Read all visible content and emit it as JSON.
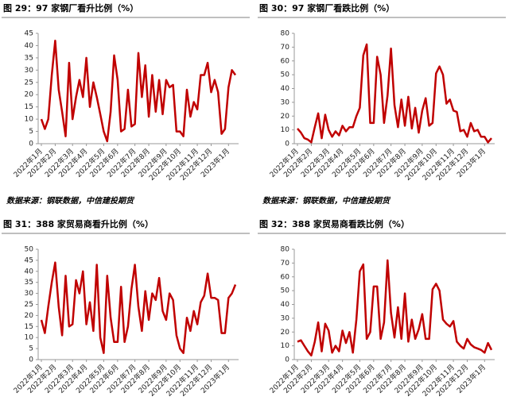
{
  "chart_data": [
    {
      "type": "line",
      "title": "图 29：97 家钢厂看升比例（%）",
      "source": "数据来源：钢联数据，中信建投期货",
      "color": "#c00000",
      "ylim": [
        0,
        45
      ],
      "yticks": [
        0,
        5,
        10,
        15,
        20,
        25,
        30,
        35,
        40,
        45
      ],
      "categories": [
        "2022年1月",
        null,
        null,
        null,
        "2022年2月",
        null,
        null,
        null,
        null,
        "2022年3月",
        null,
        null,
        null,
        "2022年4月",
        null,
        null,
        null,
        null,
        "2022年5月",
        null,
        null,
        null,
        "2022年6月",
        null,
        null,
        null,
        null,
        "2022年7月",
        null,
        null,
        null,
        "2022年8月",
        null,
        null,
        null,
        null,
        "2022年9月",
        null,
        null,
        null,
        "2022年10月",
        null,
        null,
        null,
        null,
        "2022年11月",
        null,
        null,
        null,
        "2022年12月",
        null,
        null,
        null,
        null,
        "2023年1月",
        null,
        null
      ],
      "values": [
        10,
        6,
        10,
        28,
        42,
        22,
        13,
        3,
        33,
        10,
        19,
        26,
        19,
        35,
        15,
        25,
        19,
        12,
        5,
        1,
        13,
        36,
        26,
        5,
        6,
        22,
        7,
        8,
        37,
        19,
        32,
        11,
        28,
        13,
        26,
        12,
        26,
        23,
        24,
        5,
        5,
        3,
        22,
        11,
        17,
        14,
        28,
        28,
        33,
        21,
        26,
        21,
        4,
        6,
        23,
        30,
        28
      ]
    },
    {
      "type": "line",
      "title": "图 30：97 家钢厂看跌比例（%）",
      "source": "数据来源：钢联数据，中信建投期货",
      "color": "#c00000",
      "ylim": [
        0,
        80
      ],
      "yticks": [
        0,
        10,
        20,
        30,
        40,
        50,
        60,
        70,
        80
      ],
      "categories": [
        "2022年1月",
        null,
        null,
        null,
        "2022年2月",
        null,
        null,
        null,
        null,
        "2022年3月",
        null,
        null,
        null,
        "2022年4月",
        null,
        null,
        null,
        null,
        "2022年5月",
        null,
        null,
        null,
        "2022年6月",
        null,
        null,
        null,
        null,
        "2022年7月",
        null,
        null,
        null,
        "2022年8月",
        null,
        null,
        null,
        null,
        "2022年9月",
        null,
        null,
        null,
        "2022年10月",
        null,
        null,
        null,
        null,
        "2022年11月",
        null,
        null,
        null,
        "2022年12月",
        null,
        null,
        null,
        null,
        "2023年1月",
        null,
        null
      ],
      "values": [
        11,
        8,
        4,
        3,
        1,
        12,
        22,
        4,
        21,
        10,
        5,
        9,
        6,
        13,
        9,
        12,
        12,
        20,
        26,
        64,
        72,
        15,
        15,
        63,
        50,
        15,
        35,
        69,
        28,
        12,
        32,
        13,
        34,
        11,
        26,
        8,
        24,
        33,
        13,
        15,
        51,
        56,
        50,
        29,
        32,
        24,
        23,
        9,
        10,
        5,
        15,
        9,
        10,
        5,
        5,
        1,
        4
      ]
    },
    {
      "type": "line",
      "title": "图 31：388 家贸易商看升比例（%）",
      "source": "数据来源：钢联数据，中信建投期货",
      "color": "#c00000",
      "ylim": [
        0,
        50
      ],
      "yticks": [
        0,
        5,
        10,
        15,
        20,
        25,
        30,
        35,
        40,
        45,
        50
      ],
      "categories": [
        "2022年1月",
        null,
        null,
        null,
        "2022年2月",
        null,
        null,
        null,
        null,
        "2022年3月",
        null,
        null,
        null,
        "2022年4月",
        null,
        null,
        null,
        null,
        "2022年5月",
        null,
        null,
        null,
        "2022年6月",
        null,
        null,
        null,
        null,
        "2022年7月",
        null,
        null,
        null,
        "2022年8月",
        null,
        null,
        null,
        null,
        "2022年9月",
        null,
        null,
        null,
        "2022年10月",
        null,
        null,
        null,
        null,
        "2022年11月",
        null,
        null,
        null,
        "2022年12月",
        null,
        null,
        null,
        null,
        "2023年1月",
        null,
        null
      ],
      "values": [
        18,
        12,
        24,
        35,
        44,
        24,
        11,
        38,
        15,
        16,
        36,
        30,
        40,
        16,
        26,
        13,
        43,
        10,
        3,
        38,
        19,
        8,
        8,
        33,
        8,
        15,
        32,
        43,
        24,
        13,
        31,
        18,
        30,
        27,
        37,
        22,
        18,
        30,
        27,
        11,
        5,
        3,
        19,
        13,
        22,
        16,
        26,
        29,
        39,
        28,
        28,
        27,
        12,
        12,
        28,
        30,
        34
      ]
    },
    {
      "type": "line",
      "title": "图 32：388 家贸易商看跌比例（%）",
      "source": "数据来源：钢联数据，中信建投期货",
      "color": "#c00000",
      "ylim": [
        0,
        80
      ],
      "yticks": [
        0,
        10,
        20,
        30,
        40,
        50,
        60,
        70,
        80
      ],
      "categories": [
        "2022年1月",
        null,
        null,
        null,
        "2022年2月",
        null,
        null,
        null,
        null,
        "2022年3月",
        null,
        null,
        null,
        "2022年4月",
        null,
        null,
        null,
        null,
        "2022年5月",
        null,
        null,
        null,
        "2022年6月",
        null,
        null,
        null,
        null,
        "2022年7月",
        null,
        null,
        null,
        "2022年8月",
        null,
        null,
        null,
        null,
        "2022年9月",
        null,
        null,
        null,
        "2022年10月",
        null,
        null,
        null,
        null,
        "2022年11月",
        null,
        null,
        null,
        "2022年12月",
        null,
        null,
        null,
        null,
        "2023年1月",
        null,
        null
      ],
      "values": [
        13,
        14,
        10,
        6,
        3,
        13,
        27,
        6,
        26,
        21,
        5,
        10,
        6,
        21,
        12,
        20,
        5,
        29,
        64,
        69,
        15,
        20,
        53,
        53,
        15,
        27,
        72,
        34,
        16,
        38,
        15,
        48,
        13,
        29,
        15,
        22,
        33,
        15,
        15,
        51,
        55,
        50,
        29,
        26,
        24,
        28,
        13,
        10,
        8,
        15,
        11,
        9,
        8,
        7,
        5,
        12,
        7
      ]
    }
  ]
}
